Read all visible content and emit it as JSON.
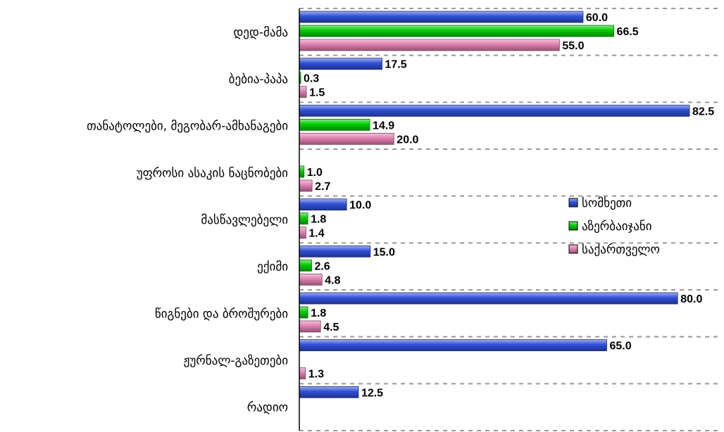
{
  "chart_data": {
    "type": "bar",
    "orientation": "horizontal",
    "categories": [
      "დედ-მამა",
      "ბებია-პაპა",
      "თანატოლები, მეგობარ-ამხანაგები",
      "უფროსი ასაკის ნაცნობები",
      "მასწავლებელი",
      "ექიმი",
      "წიგნები და ბროშურები",
      "ჟურნალ-გაზეთები",
      "რადიო"
    ],
    "series": [
      {
        "name": "სომხეთი",
        "color": "#2f4fd8",
        "values": [
          60.0,
          17.5,
          82.5,
          null,
          10.0,
          15.0,
          80.0,
          65.0,
          12.5
        ]
      },
      {
        "name": "აზერბაიჯანი",
        "color": "#00cc00",
        "values": [
          66.5,
          0.3,
          14.9,
          1.0,
          1.8,
          2.6,
          1.8,
          null,
          null
        ]
      },
      {
        "name": "საქართველო",
        "color": "#e07fb0",
        "values": [
          55.0,
          1.5,
          20.0,
          2.7,
          1.4,
          4.8,
          4.5,
          1.3,
          null
        ]
      }
    ],
    "value_labels": [
      [
        "60.0",
        "17.5",
        "82.5",
        "",
        "10.0",
        "15.0",
        "80.0",
        "65.0",
        "12.5"
      ],
      [
        "66.5",
        "0.3",
        "14.9",
        "1.0",
        "1.8",
        "2.6",
        "1.8",
        "",
        ""
      ],
      [
        "55.0",
        "1.5",
        "20.0",
        "2.7",
        "1.4",
        "4.8",
        "4.5",
        "1.3",
        ""
      ]
    ],
    "xlim": [
      0,
      82.5
    ],
    "grid": "dashed horizontal separators between categories",
    "legend_position": "right-middle",
    "title": "",
    "xlabel": "",
    "ylabel": ""
  }
}
